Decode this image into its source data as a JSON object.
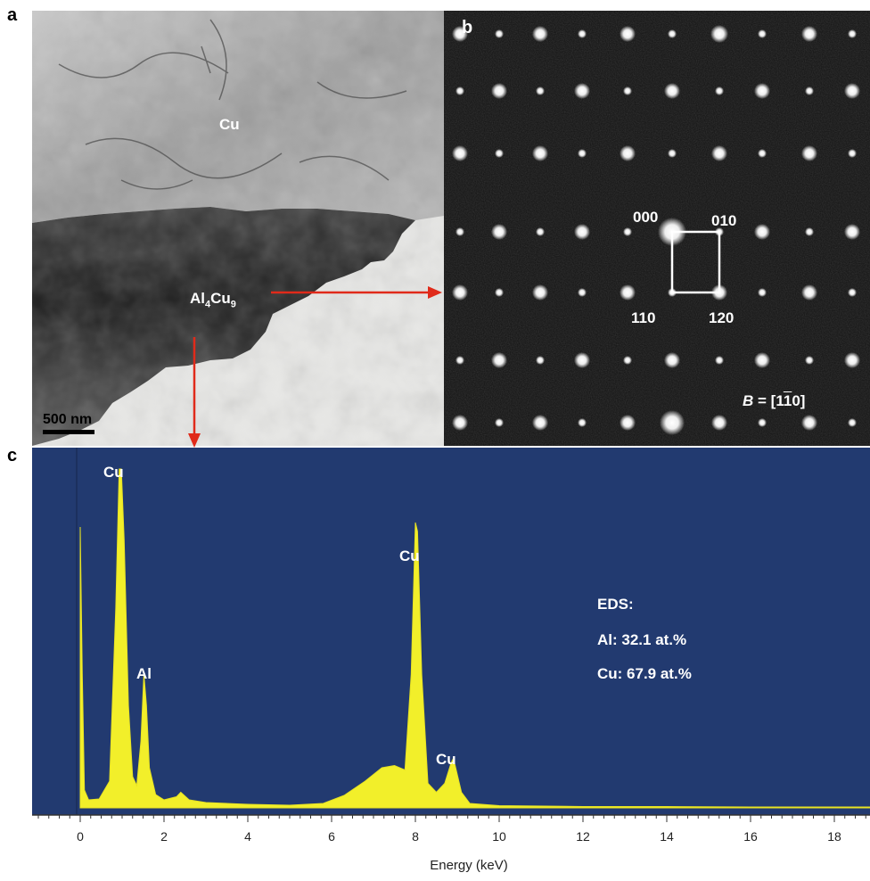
{
  "panels": {
    "a": {
      "letter": "a",
      "cu_label": "Cu",
      "phase_label": {
        "base": "Al",
        "sub1": "4",
        "mid": "Cu",
        "sub2": "9"
      },
      "scale_bar": "500 nm"
    },
    "b": {
      "letter": "b",
      "spot_labels": [
        "000",
        "010",
        "110",
        "120"
      ],
      "zone_axis": {
        "var": "B",
        "eq": " = [1",
        "bar": "1",
        "end": "0]"
      }
    },
    "c": {
      "letter": "c",
      "peak_labels": [
        "Cu",
        "Al",
        "Cu",
        "Cu"
      ],
      "eds": {
        "title": "EDS:",
        "al": "Al: 32.1 at.%",
        "cu": "Cu: 67.9 at.%"
      }
    }
  },
  "colors": {
    "spectrum_bg": "#223a70",
    "spectrum_fill": "#f2ef2a",
    "arrow": "#e02a1a"
  },
  "chart_data": {
    "type": "area",
    "xlabel": "Energy (keV)",
    "ylabel": "",
    "xlim": [
      -1.2,
      19
    ],
    "x_ticks": [
      0,
      2,
      4,
      6,
      8,
      10,
      12,
      14,
      16,
      18
    ],
    "series": [
      {
        "x": [
          0.0,
          0.05,
          0.1,
          0.2,
          0.45,
          0.7,
          0.85,
          0.93,
          0.98,
          1.05,
          1.15,
          1.25,
          1.35,
          1.45,
          1.52,
          1.58,
          1.65,
          1.8,
          2.0,
          2.3,
          2.4,
          2.6,
          3.0,
          4.0,
          5.0,
          5.8,
          6.3,
          6.8,
          7.2,
          7.5,
          7.75,
          7.9,
          8.0,
          8.05,
          8.15,
          8.3,
          8.5,
          8.7,
          8.85,
          8.9,
          8.95,
          9.1,
          9.3,
          10.0,
          12.0,
          14.0,
          16.0,
          18.0,
          19.0
        ],
        "y": [
          630,
          300,
          40,
          18,
          20,
          60,
          450,
          760,
          760,
          600,
          230,
          70,
          50,
          150,
          300,
          230,
          90,
          30,
          18,
          25,
          35,
          18,
          12,
          8,
          6,
          10,
          28,
          60,
          90,
          95,
          85,
          300,
          640,
          620,
          300,
          55,
          35,
          55,
          100,
          110,
          95,
          35,
          10,
          5,
          3,
          3,
          2,
          2,
          2
        ]
      }
    ],
    "ylim": [
      0,
      800
    ]
  }
}
